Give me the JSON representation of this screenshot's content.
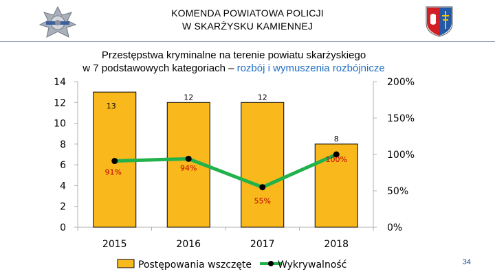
{
  "header": {
    "line1": "KOMENDA POWIATOWA POLICJI",
    "line2": "W SKARŻYSKU KAMIENNEJ"
  },
  "page_number": "34",
  "chart_data": {
    "type": "bar+line",
    "title_line1": "Przestępstwa kryminalne na terenie powiatu skarżyskiego",
    "title_line2_prefix": "w 7 podstawowych kategoriach – ",
    "title_line2_highlight": "rozbój i wymuszenia rozbójnicze",
    "categories": [
      "2015",
      "2016",
      "2017",
      "2018"
    ],
    "series": [
      {
        "name": "Postępowania wszczęte",
        "type": "bar",
        "axis": "left",
        "values": [
          13,
          12,
          12,
          8
        ],
        "labels": [
          "13",
          "12",
          "12",
          "8"
        ],
        "color": "#f9b81c"
      },
      {
        "name": "Wykrywalność",
        "type": "line",
        "axis": "right",
        "values": [
          91,
          94,
          55,
          100
        ],
        "labels": [
          "91%",
          "94%",
          "55%",
          "100%"
        ],
        "color": "#22b24c"
      }
    ],
    "y_left": {
      "min": 0,
      "max": 14,
      "ticks": [
        "0",
        "2",
        "4",
        "6",
        "8",
        "10",
        "12",
        "14"
      ]
    },
    "y_right": {
      "min": 0,
      "max": 200,
      "ticks": [
        "0%",
        "50%",
        "100%",
        "150%",
        "200%"
      ]
    },
    "label_color": "#c00000",
    "legend_position": "bottom"
  }
}
